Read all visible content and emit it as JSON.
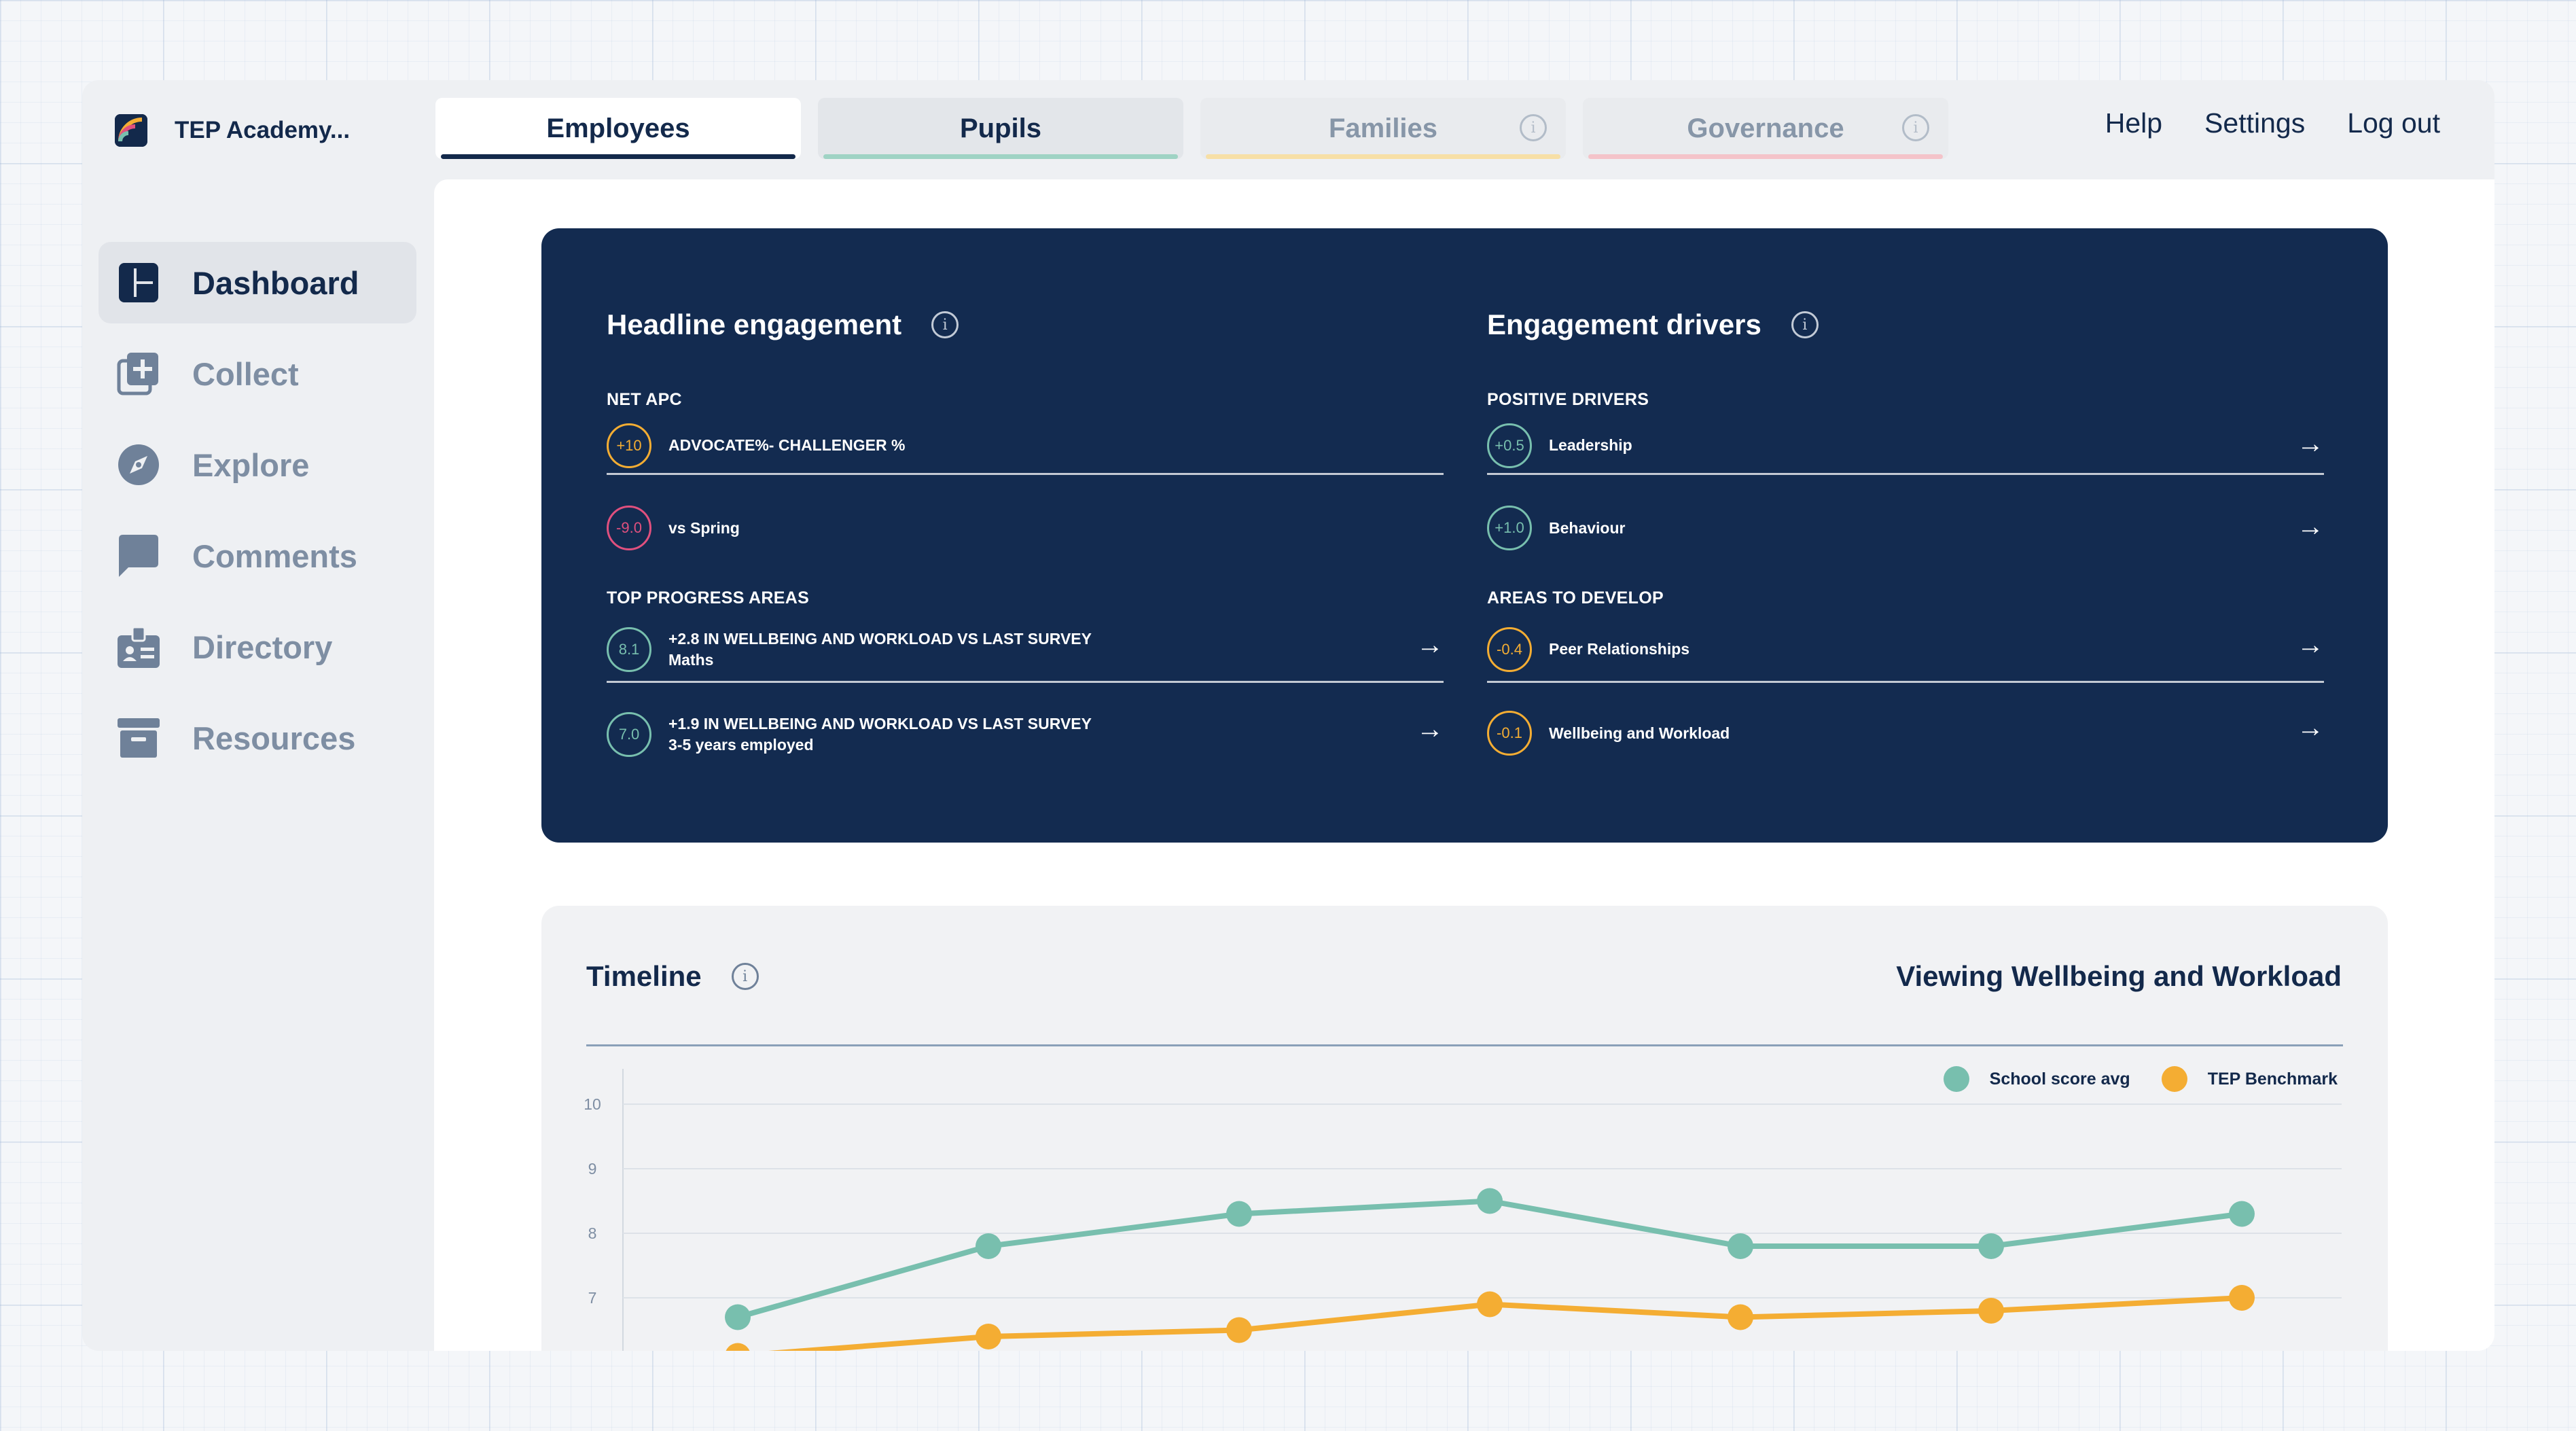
{
  "brand": {
    "name": "TEP Academy..."
  },
  "tabs": [
    {
      "label": "Employees",
      "color": "#13294b",
      "active": true
    },
    {
      "label": "Pupils",
      "color": "#7ec3b0"
    },
    {
      "label": "Families",
      "color": "#f7d99a",
      "info": true
    },
    {
      "label": "Governance",
      "color": "#f3b9c0",
      "info": true
    }
  ],
  "top_links": [
    "Help",
    "Settings",
    "Log out"
  ],
  "sidebar": {
    "items": [
      {
        "label": "Dashboard",
        "icon": "dashboard-icon",
        "active": true
      },
      {
        "label": "Collect",
        "icon": "collect-icon"
      },
      {
        "label": "Explore",
        "icon": "compass-icon"
      },
      {
        "label": "Comments",
        "icon": "comment-icon"
      },
      {
        "label": "Directory",
        "icon": "badge-icon"
      },
      {
        "label": "Resources",
        "icon": "archive-icon"
      }
    ]
  },
  "headline": {
    "title": "Headline engagement",
    "net_apc_label": "NET APC",
    "net_apc_value": "+10",
    "net_apc_text": "ADVOCATE%- CHALLENGER %",
    "vs_value": "-9.0",
    "vs_text": "vs Spring",
    "top_label": "TOP PROGRESS AREAS",
    "progress": [
      {
        "value": "8.1",
        "text": "+2.8 IN WELLBEING AND WORKLOAD VS LAST SURVEY",
        "sub": "Maths"
      },
      {
        "value": "7.0",
        "text": "+1.9 IN WELLBEING AND WORKLOAD VS LAST SURVEY",
        "sub": "3-5 years employed"
      }
    ]
  },
  "drivers": {
    "title": "Engagement drivers",
    "positive_label": "POSITIVE DRIVERS",
    "positive": [
      {
        "value": "+0.5",
        "text": "Leadership"
      },
      {
        "value": "+1.0",
        "text": "Behaviour"
      }
    ],
    "develop_label": "AREAS TO DEVELOP",
    "develop": [
      {
        "value": "-0.4",
        "text": "Peer Relationships"
      },
      {
        "value": "-0.1",
        "text": "Wellbeing and Workload"
      }
    ]
  },
  "colors": {
    "teal": "#78bfae",
    "amber": "#f4ad33",
    "pink": "#e0507e",
    "navy": "#132b50"
  },
  "timeline": {
    "title": "Timeline",
    "viewing": "Viewing Wellbeing and Workload"
  },
  "chart_data": {
    "type": "line",
    "x": [
      1,
      2,
      3,
      4,
      5,
      6,
      7
    ],
    "series": [
      {
        "name": "School score avg",
        "color": "#78bfae",
        "values": [
          6.7,
          7.8,
          8.3,
          8.5,
          7.8,
          7.8,
          8.3
        ]
      },
      {
        "name": "TEP Benchmark",
        "color": "#f4ad33",
        "values": [
          6.1,
          6.4,
          6.5,
          6.9,
          6.7,
          6.8,
          7.0
        ]
      }
    ],
    "yticks": [
      7,
      8,
      9,
      10
    ],
    "ylim": [
      6,
      10.3
    ],
    "grid": true,
    "legend": "top-right"
  }
}
